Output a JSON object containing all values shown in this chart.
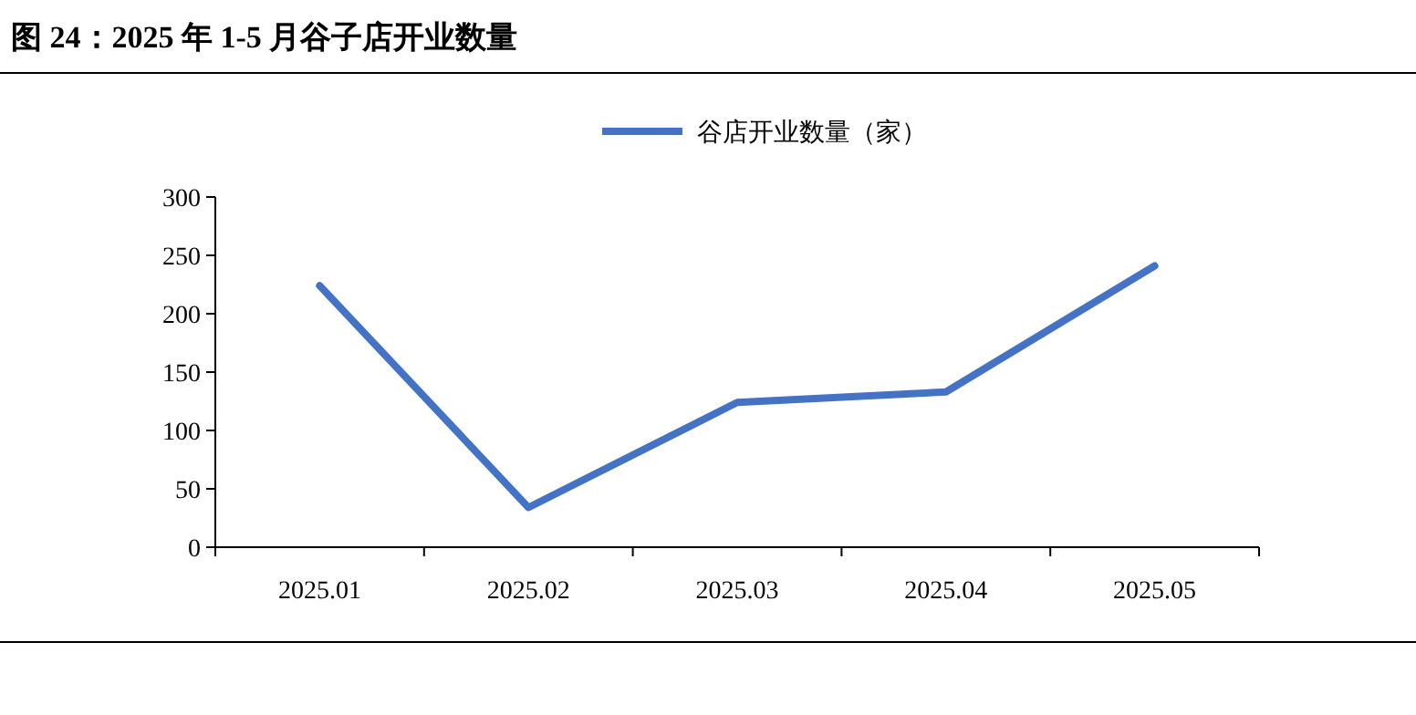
{
  "chart_data": {
    "type": "line",
    "title": "图 24：2025 年 1-5 月谷子店开业数量",
    "categories": [
      "2025.01",
      "2025.02",
      "2025.03",
      "2025.04",
      "2025.05"
    ],
    "series": [
      {
        "name": "谷店开业数量（家）",
        "color": "#4472c4",
        "values": [
          224,
          34,
          124,
          133,
          241
        ]
      }
    ],
    "ylim": [
      0,
      300
    ],
    "yticks": [
      0,
      50,
      100,
      150,
      200,
      250,
      300
    ],
    "legend": "top"
  }
}
